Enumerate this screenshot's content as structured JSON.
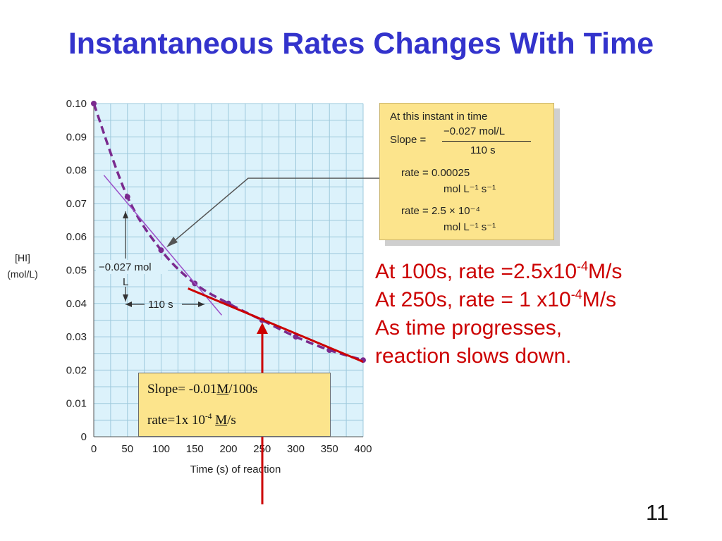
{
  "slide": {
    "title": "Instantaneous Rates Changes With Time",
    "page_number": "11"
  },
  "chart_data": {
    "type": "line",
    "x": [
      0,
      50,
      100,
      150,
      200,
      250,
      300,
      350,
      400
    ],
    "series": [
      {
        "values": [
          0.1,
          0.072,
          0.056,
          0.046,
          0.04,
          0.035,
          0.03,
          0.026,
          0.023
        ]
      }
    ],
    "xlabel": "Time (s) of reaction",
    "ylabel_lines": [
      "[HI]",
      "(mol/L)"
    ],
    "xlim": [
      0,
      400
    ],
    "ylim": [
      0,
      0.1
    ],
    "x_ticks": [
      "0",
      "50",
      "100",
      "150",
      "200",
      "250",
      "300",
      "350",
      "400"
    ],
    "y_ticks": [
      "0",
      "0.01",
      "0.02",
      "0.03",
      "0.04",
      "0.05",
      "0.06",
      "0.07",
      "0.08",
      "0.09",
      "0.10"
    ],
    "grid": true,
    "tangents": [
      {
        "at_x": 100,
        "from": [
          15,
          0.0785
        ],
        "to": [
          190,
          0.0365
        ],
        "color": "#9b4fc9"
      },
      {
        "at_x": 250,
        "from": [
          140,
          0.0445
        ],
        "to": [
          400,
          0.0225
        ],
        "color": "#cc0000"
      }
    ],
    "annotations": {
      "rise_label": "−0.027 mol",
      "rise_unit": "L",
      "run_label": "110 s"
    },
    "colors": {
      "plot_bg": "#dcf2fb",
      "grid": "#9ec9dc",
      "curve": "#7a2a8e",
      "red": "#cc0000"
    }
  },
  "callout": {
    "heading": "At this instant in time",
    "slope_label": "Slope =",
    "slope_numerator": "−0.027 mol/L",
    "slope_denominator": "110 s",
    "rate1_label": "rate = 0.00025",
    "rate1_unit": "mol L⁻¹ s⁻¹",
    "rate2_label": "rate = 2.5 × 10⁻⁴",
    "rate2_unit": "mol L⁻¹ s⁻¹"
  },
  "slope_box": {
    "line1_prefix": "Slope= -0.01",
    "line1_unit": "M",
    "line1_suffix": "/100s",
    "line2_prefix": "rate=1x 10",
    "line2_exp": "-4",
    "line2_unit": "M",
    "line2_suffix": "/s"
  },
  "notes": {
    "line1_prefix": "At 100s, rate =2.5x10",
    "line1_exp": "-4",
    "line1_suffix": "M/s",
    "line2_prefix": "At 250s, rate = 1 x10",
    "line2_exp": "-4",
    "line2_suffix": "M/s",
    "line3": "As time progresses,",
    "line4": "reaction slows down."
  }
}
